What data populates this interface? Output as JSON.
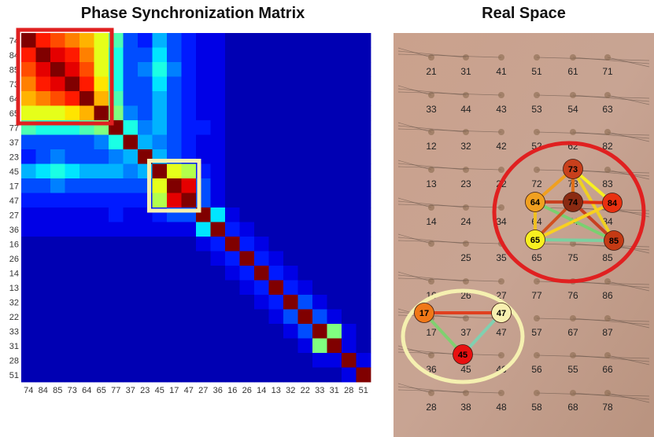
{
  "titles": {
    "matrix": "Phase Synchronization Matrix",
    "space": "Real Space"
  },
  "matrix": {
    "labels": [
      "74",
      "84",
      "85",
      "73",
      "64",
      "65",
      "77",
      "37",
      "23",
      "45",
      "17",
      "47",
      "27",
      "36",
      "16",
      "26",
      "14",
      "13",
      "32",
      "22",
      "33",
      "31",
      "28",
      "51"
    ],
    "cells": [
      [
        1.0,
        0.85,
        0.8,
        0.75,
        0.7,
        0.6,
        0.45,
        0.2,
        0.15,
        0.3,
        0.2,
        0.15,
        0.1,
        0.1,
        0.05,
        0.05,
        0.05,
        0.05,
        0.05,
        0.05,
        0.05,
        0.05,
        0.05,
        0.05
      ],
      [
        0.85,
        1.0,
        0.9,
        0.85,
        0.75,
        0.6,
        0.4,
        0.2,
        0.2,
        0.35,
        0.2,
        0.15,
        0.1,
        0.1,
        0.05,
        0.05,
        0.05,
        0.05,
        0.05,
        0.05,
        0.05,
        0.05,
        0.05,
        0.05
      ],
      [
        0.8,
        0.9,
        1.0,
        0.9,
        0.8,
        0.6,
        0.4,
        0.2,
        0.25,
        0.4,
        0.25,
        0.15,
        0.1,
        0.1,
        0.05,
        0.05,
        0.05,
        0.05,
        0.05,
        0.05,
        0.05,
        0.05,
        0.05,
        0.05
      ],
      [
        0.75,
        0.85,
        0.9,
        1.0,
        0.85,
        0.65,
        0.4,
        0.2,
        0.2,
        0.35,
        0.2,
        0.15,
        0.1,
        0.1,
        0.05,
        0.05,
        0.05,
        0.05,
        0.05,
        0.05,
        0.05,
        0.05,
        0.05,
        0.05
      ],
      [
        0.7,
        0.75,
        0.8,
        0.85,
        1.0,
        0.7,
        0.45,
        0.2,
        0.2,
        0.3,
        0.2,
        0.15,
        0.1,
        0.1,
        0.05,
        0.05,
        0.05,
        0.05,
        0.05,
        0.05,
        0.05,
        0.05,
        0.05,
        0.05
      ],
      [
        0.6,
        0.6,
        0.6,
        0.65,
        0.7,
        1.0,
        0.5,
        0.25,
        0.2,
        0.3,
        0.2,
        0.15,
        0.1,
        0.1,
        0.05,
        0.05,
        0.05,
        0.05,
        0.05,
        0.05,
        0.05,
        0.05,
        0.05,
        0.05
      ],
      [
        0.45,
        0.4,
        0.4,
        0.4,
        0.45,
        0.5,
        1.0,
        0.4,
        0.25,
        0.3,
        0.2,
        0.15,
        0.15,
        0.1,
        0.05,
        0.05,
        0.05,
        0.05,
        0.05,
        0.05,
        0.05,
        0.05,
        0.05,
        0.05
      ],
      [
        0.2,
        0.2,
        0.2,
        0.2,
        0.2,
        0.25,
        0.4,
        1.0,
        0.3,
        0.25,
        0.2,
        0.15,
        0.1,
        0.1,
        0.05,
        0.05,
        0.05,
        0.05,
        0.05,
        0.05,
        0.05,
        0.05,
        0.05,
        0.05
      ],
      [
        0.15,
        0.2,
        0.25,
        0.2,
        0.2,
        0.2,
        0.25,
        0.3,
        1.0,
        0.3,
        0.2,
        0.15,
        0.1,
        0.1,
        0.05,
        0.05,
        0.05,
        0.05,
        0.05,
        0.05,
        0.05,
        0.05,
        0.05,
        0.05
      ],
      [
        0.3,
        0.35,
        0.4,
        0.35,
        0.3,
        0.3,
        0.3,
        0.25,
        0.3,
        1.0,
        0.6,
        0.55,
        0.15,
        0.1,
        0.05,
        0.05,
        0.05,
        0.05,
        0.05,
        0.05,
        0.05,
        0.05,
        0.05,
        0.05
      ],
      [
        0.2,
        0.2,
        0.25,
        0.2,
        0.2,
        0.2,
        0.2,
        0.2,
        0.2,
        0.6,
        1.0,
        0.9,
        0.2,
        0.1,
        0.05,
        0.05,
        0.05,
        0.05,
        0.05,
        0.05,
        0.05,
        0.05,
        0.05,
        0.05
      ],
      [
        0.15,
        0.15,
        0.15,
        0.15,
        0.15,
        0.15,
        0.15,
        0.15,
        0.15,
        0.55,
        0.9,
        1.0,
        0.2,
        0.1,
        0.05,
        0.05,
        0.05,
        0.05,
        0.05,
        0.05,
        0.05,
        0.05,
        0.05,
        0.05
      ],
      [
        0.1,
        0.1,
        0.1,
        0.1,
        0.1,
        0.1,
        0.15,
        0.1,
        0.1,
        0.15,
        0.2,
        0.2,
        1.0,
        0.35,
        0.1,
        0.05,
        0.05,
        0.05,
        0.05,
        0.05,
        0.05,
        0.05,
        0.05,
        0.05
      ],
      [
        0.1,
        0.1,
        0.1,
        0.1,
        0.1,
        0.1,
        0.1,
        0.1,
        0.1,
        0.1,
        0.1,
        0.1,
        0.35,
        1.0,
        0.15,
        0.1,
        0.05,
        0.05,
        0.05,
        0.05,
        0.05,
        0.05,
        0.05,
        0.05
      ],
      [
        0.05,
        0.05,
        0.05,
        0.05,
        0.05,
        0.05,
        0.05,
        0.05,
        0.05,
        0.05,
        0.05,
        0.05,
        0.1,
        0.15,
        1.0,
        0.15,
        0.1,
        0.05,
        0.05,
        0.05,
        0.05,
        0.05,
        0.05,
        0.05
      ],
      [
        0.05,
        0.05,
        0.05,
        0.05,
        0.05,
        0.05,
        0.05,
        0.05,
        0.05,
        0.05,
        0.05,
        0.05,
        0.05,
        0.1,
        0.15,
        1.0,
        0.15,
        0.1,
        0.05,
        0.05,
        0.05,
        0.05,
        0.05,
        0.05
      ],
      [
        0.05,
        0.05,
        0.05,
        0.05,
        0.05,
        0.05,
        0.05,
        0.05,
        0.05,
        0.05,
        0.05,
        0.05,
        0.05,
        0.05,
        0.1,
        0.15,
        1.0,
        0.15,
        0.1,
        0.05,
        0.05,
        0.05,
        0.05,
        0.05
      ],
      [
        0.05,
        0.05,
        0.05,
        0.05,
        0.05,
        0.05,
        0.05,
        0.05,
        0.05,
        0.05,
        0.05,
        0.05,
        0.05,
        0.05,
        0.05,
        0.1,
        0.15,
        1.0,
        0.15,
        0.1,
        0.05,
        0.05,
        0.05,
        0.05
      ],
      [
        0.05,
        0.05,
        0.05,
        0.05,
        0.05,
        0.05,
        0.05,
        0.05,
        0.05,
        0.05,
        0.05,
        0.05,
        0.05,
        0.05,
        0.05,
        0.05,
        0.1,
        0.15,
        1.0,
        0.2,
        0.1,
        0.05,
        0.05,
        0.05
      ],
      [
        0.05,
        0.05,
        0.05,
        0.05,
        0.05,
        0.05,
        0.05,
        0.05,
        0.05,
        0.05,
        0.05,
        0.05,
        0.05,
        0.05,
        0.05,
        0.05,
        0.05,
        0.1,
        0.2,
        1.0,
        0.2,
        0.1,
        0.05,
        0.05
      ],
      [
        0.05,
        0.05,
        0.05,
        0.05,
        0.05,
        0.05,
        0.05,
        0.05,
        0.05,
        0.05,
        0.05,
        0.05,
        0.05,
        0.05,
        0.05,
        0.05,
        0.05,
        0.05,
        0.1,
        0.2,
        1.0,
        0.5,
        0.1,
        0.05
      ],
      [
        0.05,
        0.05,
        0.05,
        0.05,
        0.05,
        0.05,
        0.05,
        0.05,
        0.05,
        0.05,
        0.05,
        0.05,
        0.05,
        0.05,
        0.05,
        0.05,
        0.05,
        0.05,
        0.05,
        0.1,
        0.5,
        1.0,
        0.1,
        0.05
      ],
      [
        0.05,
        0.05,
        0.05,
        0.05,
        0.05,
        0.05,
        0.05,
        0.05,
        0.05,
        0.05,
        0.05,
        0.05,
        0.05,
        0.05,
        0.05,
        0.05,
        0.05,
        0.05,
        0.05,
        0.05,
        0.1,
        0.1,
        1.0,
        0.1
      ],
      [
        0.05,
        0.05,
        0.05,
        0.05,
        0.05,
        0.05,
        0.05,
        0.05,
        0.05,
        0.05,
        0.05,
        0.05,
        0.05,
        0.05,
        0.05,
        0.05,
        0.05,
        0.05,
        0.05,
        0.05,
        0.05,
        0.05,
        0.1,
        1.0
      ]
    ],
    "highlights": [
      {
        "from": 0,
        "to": 5,
        "color": "#e02020"
      },
      {
        "from": 9,
        "to": 11,
        "color": "#f5f0b0"
      }
    ]
  },
  "space": {
    "grid": [
      [
        "21",
        "31",
        "41",
        "51",
        "61",
        "71"
      ],
      [
        "33",
        "44",
        "43",
        "53",
        "54",
        "63"
      ],
      [
        "12",
        "32",
        "42",
        "52",
        "62",
        "82"
      ],
      [
        "13",
        "23",
        "22",
        "72",
        "73",
        "83"
      ],
      [
        "14",
        "24",
        "34",
        "64",
        "74",
        "84"
      ],
      [
        "",
        "25",
        "35",
        "65",
        "75",
        "85"
      ],
      [
        "16",
        "26",
        "27",
        "77",
        "76",
        "86"
      ],
      [
        "17",
        "37",
        "47",
        "57",
        "67",
        "87"
      ],
      [
        "36",
        "45",
        "46",
        "56",
        "55",
        "66"
      ],
      [
        "28",
        "38",
        "48",
        "58",
        "68",
        "78"
      ]
    ],
    "nodes": [
      {
        "id": "73",
        "color": "#c8401c"
      },
      {
        "id": "64",
        "color": "#f0a020"
      },
      {
        "id": "74",
        "color": "#8a2a12"
      },
      {
        "id": "84",
        "color": "#e83010"
      },
      {
        "id": "65",
        "color": "#f8f020"
      },
      {
        "id": "85",
        "color": "#c43a14"
      },
      {
        "id": "17",
        "color": "#f07818"
      },
      {
        "id": "47",
        "color": "#f8f0b0"
      },
      {
        "id": "45",
        "color": "#e81010"
      }
    ],
    "clusters": [
      {
        "color": "#e02020"
      },
      {
        "color": "#f5f0b0"
      }
    ]
  }
}
